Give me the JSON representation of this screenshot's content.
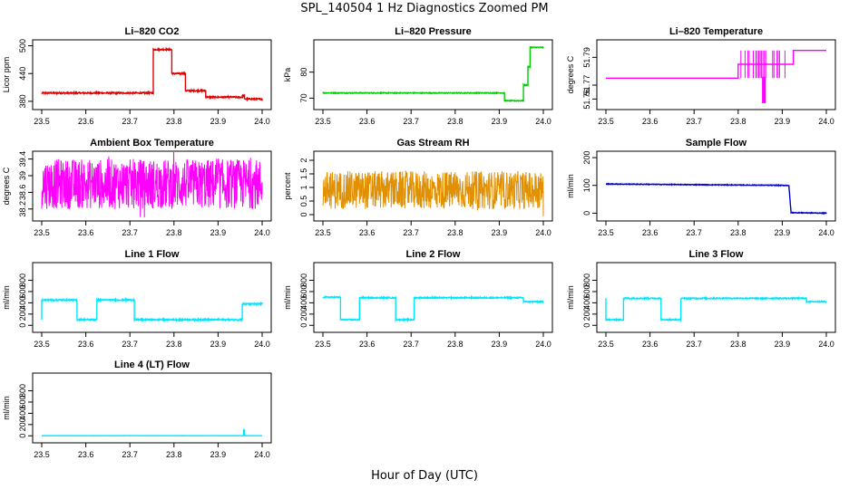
{
  "figure": {
    "title": "SPL_140504  1 Hz Diagnostics Zoomed PM",
    "xlabel": "Hour of Day (UTC)"
  },
  "chart_data": [
    {
      "type": "line",
      "title": "Li–820 CO2",
      "ylabel": "Licor ppm",
      "color": "#e00000",
      "xlim": [
        23.5,
        24.0
      ],
      "ylim": [
        370,
        505
      ],
      "yticks": [
        380,
        440,
        500
      ],
      "xticks": [
        23.5,
        23.6,
        23.7,
        23.8,
        23.9,
        24.0
      ],
      "series": [
        {
          "x": [
            23.5,
            23.753,
            23.753,
            23.795,
            23.795,
            23.826,
            23.826,
            23.872,
            23.872,
            23.955,
            23.955,
            23.96,
            23.96,
            24.0
          ],
          "values": [
            398,
            398,
            492,
            492,
            440,
            440,
            403,
            403,
            389,
            389,
            392,
            392,
            385,
            385
          ]
        }
      ],
      "noise": 1.5
    },
    {
      "type": "line",
      "title": "Li–820 Pressure",
      "ylabel": "kPa",
      "color": "#00cc00",
      "xlim": [
        23.5,
        24.0
      ],
      "ylim": [
        67,
        91
      ],
      "yticks": [
        70,
        80
      ],
      "xticks": [
        23.5,
        23.6,
        23.7,
        23.8,
        23.9,
        24.0
      ],
      "series": [
        {
          "x": [
            23.5,
            23.912,
            23.912,
            23.955,
            23.955,
            23.965,
            23.965,
            23.97,
            23.97,
            24.0
          ],
          "values": [
            72,
            72,
            69,
            69,
            75,
            75,
            82,
            82,
            89.5,
            89.5
          ]
        }
      ],
      "noise": 0.15
    },
    {
      "type": "line",
      "title": "Li–820 Temperature",
      "ylabel": "degrees C",
      "color": "#ff00ff",
      "xlim": [
        23.5,
        24.0
      ],
      "ylim": [
        51.755,
        51.8
      ],
      "yticks": [
        51.76,
        51.77,
        51.79
      ],
      "xticks": [
        23.5,
        23.6,
        23.7,
        23.8,
        23.9,
        24.0
      ],
      "series": [
        {
          "x": [
            23.5,
            23.8,
            23.8,
            23.925,
            23.925,
            24.0
          ],
          "values": [
            51.775,
            51.775,
            51.785,
            51.785,
            51.795,
            51.795
          ]
        }
      ],
      "bursts": [
        [
          23.8,
          23.925,
          51.775,
          51.795
        ],
        [
          23.855,
          23.862,
          51.757,
          51.776
        ]
      ],
      "noise": 0
    },
    {
      "type": "line",
      "title": "Ambient Box Temperature",
      "ylabel": "degrees C",
      "color": "#ff00ff",
      "xlim": [
        23.5,
        24.0
      ],
      "ylim": [
        38.0,
        39.5
      ],
      "yticks": [
        38.2,
        38.6,
        39.0,
        39.4
      ],
      "xticks": [
        23.5,
        23.6,
        23.7,
        23.8,
        23.9,
        24.0
      ],
      "series": [
        {
          "x": [
            23.5,
            24.0
          ],
          "values": [
            38.55,
            38.55
          ]
        }
      ],
      "band": [
        38.2,
        39.4
      ],
      "noise": 0.6
    },
    {
      "type": "line",
      "title": "Gas Stream RH",
      "ylabel": "percent",
      "color": "#e09000",
      "xlim": [
        23.5,
        24.0
      ],
      "ylim": [
        -0.1,
        2.2
      ],
      "yticks": [
        0.0,
        0.5,
        1.0,
        1.5,
        2.0
      ],
      "xticks": [
        23.5,
        23.6,
        23.7,
        23.8,
        23.9,
        24.0
      ],
      "series": [
        {
          "x": [
            23.5,
            24.0
          ],
          "values": [
            0.85,
            0.85
          ]
        }
      ],
      "band": [
        0.2,
        1.6
      ],
      "noise": 0.35
    },
    {
      "type": "line",
      "title": "Sample Flow",
      "ylabel": "ml/min",
      "color": "#0000cc",
      "xlim": [
        23.5,
        24.0
      ],
      "ylim": [
        -15,
        210
      ],
      "yticks": [
        0,
        100,
        200
      ],
      "xticks": [
        23.5,
        23.6,
        23.7,
        23.8,
        23.9,
        24.0
      ],
      "series": [
        {
          "x": [
            23.5,
            23.915,
            23.92,
            24.0
          ],
          "values": [
            105,
            100,
            2,
            0
          ]
        }
      ],
      "noise": 1.2
    },
    {
      "type": "line",
      "title": "Line 1 Flow",
      "ylabel": "ml/min",
      "color": "#00e5ff",
      "xlim": [
        23.5,
        24.0
      ],
      "ylim": [
        -60,
        1050
      ],
      "yticks": [
        0,
        200,
        400,
        600,
        800
      ],
      "xticks": [
        23.5,
        23.6,
        23.7,
        23.8,
        23.9,
        24.0
      ],
      "series": [
        {
          "x": [
            23.5,
            23.5,
            23.58,
            23.58,
            23.625,
            23.625,
            23.71,
            23.71,
            23.955,
            23.955,
            24.0
          ],
          "values": [
            100,
            450,
            450,
            100,
            100,
            450,
            450,
            100,
            100,
            380,
            380
          ]
        }
      ],
      "noise": 12
    },
    {
      "type": "line",
      "title": "Line 2 Flow",
      "ylabel": "ml/min",
      "color": "#00e5ff",
      "xlim": [
        23.5,
        24.0
      ],
      "ylim": [
        -60,
        1050
      ],
      "yticks": [
        0,
        200,
        400,
        600,
        800
      ],
      "xticks": [
        23.5,
        23.6,
        23.7,
        23.8,
        23.9,
        24.0
      ],
      "series": [
        {
          "x": [
            23.5,
            23.54,
            23.54,
            23.583,
            23.583,
            23.665,
            23.665,
            23.707,
            23.707,
            23.955,
            23.955,
            24.0
          ],
          "values": [
            500,
            500,
            100,
            100,
            490,
            490,
            100,
            100,
            490,
            490,
            420,
            420
          ]
        }
      ],
      "noise": 10
    },
    {
      "type": "line",
      "title": "Line 3 Flow",
      "ylabel": "ml/min",
      "color": "#00e5ff",
      "xlim": [
        23.5,
        24.0
      ],
      "ylim": [
        -60,
        1050
      ],
      "yticks": [
        0,
        200,
        400,
        600,
        800
      ],
      "xticks": [
        23.5,
        23.6,
        23.7,
        23.8,
        23.9,
        24.0
      ],
      "series": [
        {
          "x": [
            23.5,
            23.5,
            23.54,
            23.54,
            23.625,
            23.625,
            23.67,
            23.67,
            23.955,
            23.955,
            24.0
          ],
          "values": [
            480,
            100,
            100,
            480,
            480,
            100,
            100,
            480,
            480,
            420,
            420
          ]
        }
      ],
      "noise": 10
    },
    {
      "type": "line",
      "title": "Line 4 (LT) Flow",
      "ylabel": "ml/min",
      "color": "#00e5ff",
      "xlim": [
        23.5,
        24.0
      ],
      "ylim": [
        -60,
        1050
      ],
      "yticks": [
        0,
        200,
        400,
        600,
        800
      ],
      "xticks": [
        23.5,
        23.6,
        23.7,
        23.8,
        23.9,
        24.0
      ],
      "series": [
        {
          "x": [
            23.5,
            23.958,
            23.958,
            23.96,
            23.96,
            24.0
          ],
          "values": [
            2,
            2,
            110,
            110,
            2,
            2
          ]
        }
      ],
      "noise": 0.5
    }
  ]
}
